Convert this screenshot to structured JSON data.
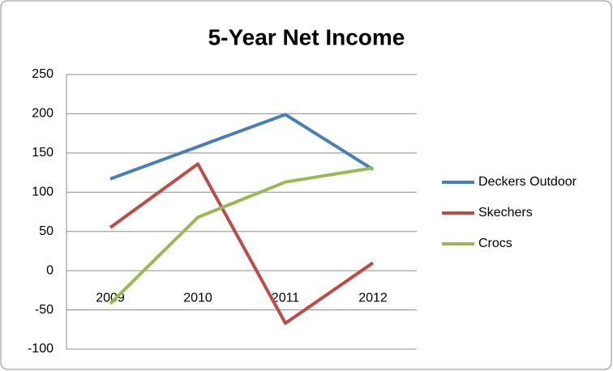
{
  "chart_data": {
    "type": "line",
    "title": "5-Year Net Income",
    "categories": [
      "2009",
      "2010",
      "2011",
      "2012"
    ],
    "series": [
      {
        "name": "Deckers Outdoor",
        "color": "#4a7ebb",
        "values": [
          117,
          158,
          199,
          129
        ]
      },
      {
        "name": "Skechers",
        "color": "#be4b48",
        "values": [
          55,
          136,
          -67,
          10
        ]
      },
      {
        "name": "Crocs",
        "color": "#98b954",
        "values": [
          -42,
          68,
          113,
          131
        ]
      }
    ],
    "ylim": [
      -100,
      250
    ],
    "yticks": [
      -100,
      -50,
      0,
      50,
      100,
      150,
      200,
      250
    ],
    "grid": true,
    "legend": "right"
  }
}
